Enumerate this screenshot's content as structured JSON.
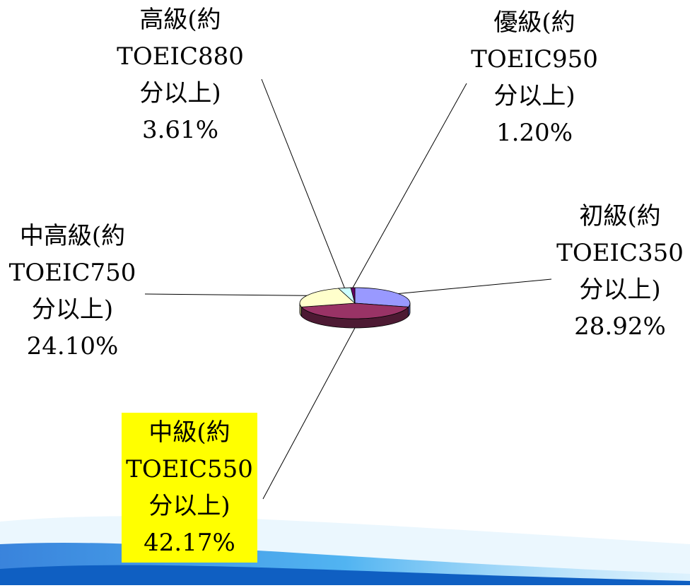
{
  "chart_data": {
    "type": "pie",
    "title": "",
    "three_d": true,
    "slices": [
      {
        "lines": [
          "初級(約",
          "TOEIC350",
          "分以上)",
          "28.92%"
        ],
        "value": 28.92,
        "color": "#9999ff",
        "side": "#4c4c99",
        "highlight": false
      },
      {
        "lines": [
          "中級(約",
          "TOEIC550",
          "分以上)",
          "42.17%"
        ],
        "value": 42.17,
        "color": "#993366",
        "side": "#4d1a33",
        "highlight": true
      },
      {
        "lines": [
          "中高級(約",
          "TOEIC750",
          "分以上)",
          "24.10%"
        ],
        "value": 24.1,
        "color": "#ffffcc",
        "side": "#999966",
        "highlight": false
      },
      {
        "lines": [
          "高級(約",
          "TOEIC880",
          "分以上)",
          "3.61%"
        ],
        "value": 3.61,
        "color": "#ccffff",
        "side": "#669999",
        "highlight": false
      },
      {
        "lines": [
          "優級(約",
          "TOEIC950",
          "分以上)",
          "1.20%"
        ],
        "value": 1.2,
        "color": "#660066",
        "side": "#330033",
        "highlight": false
      }
    ],
    "legend": "none",
    "grid": false,
    "label_style": "callout-lines"
  }
}
